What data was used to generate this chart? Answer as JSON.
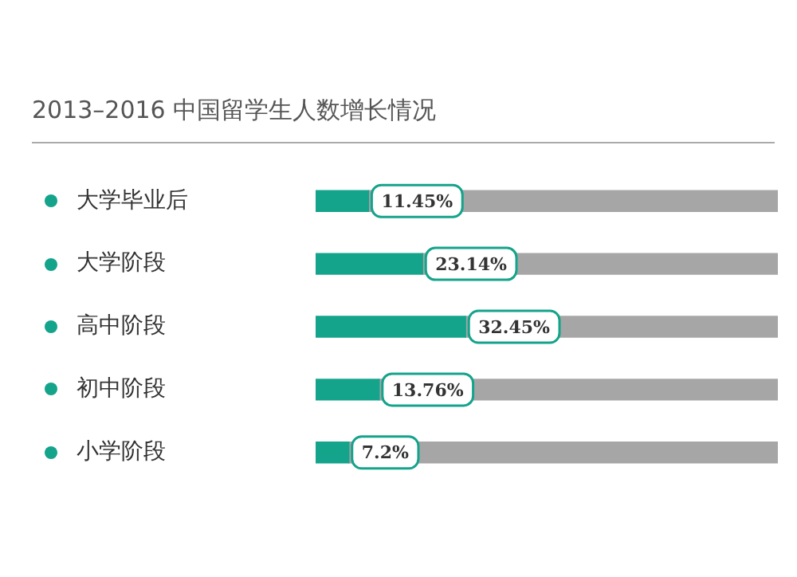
{
  "chart_data": {
    "type": "bar",
    "orientation": "horizontal",
    "stacked": true,
    "title": "2013–2016 中国留学生人数增长情况",
    "categories": [
      "大学毕业后",
      "大学阶段",
      "高中阶段",
      "初中阶段",
      "小学阶段"
    ],
    "series": [
      {
        "color": "#14a38b",
        "values": [
          11.45,
          23.14,
          32.45,
          13.76,
          7.2
        ],
        "value_labels": [
          "11.45%",
          "23.14%",
          "32.45%",
          "13.76%",
          "7.2%"
        ]
      },
      {
        "color": "#a6a6a6",
        "values": [
          88.55,
          76.86,
          67.55,
          86.24,
          92.8
        ]
      }
    ],
    "tick_labels": "y",
    "legend": false
  }
}
